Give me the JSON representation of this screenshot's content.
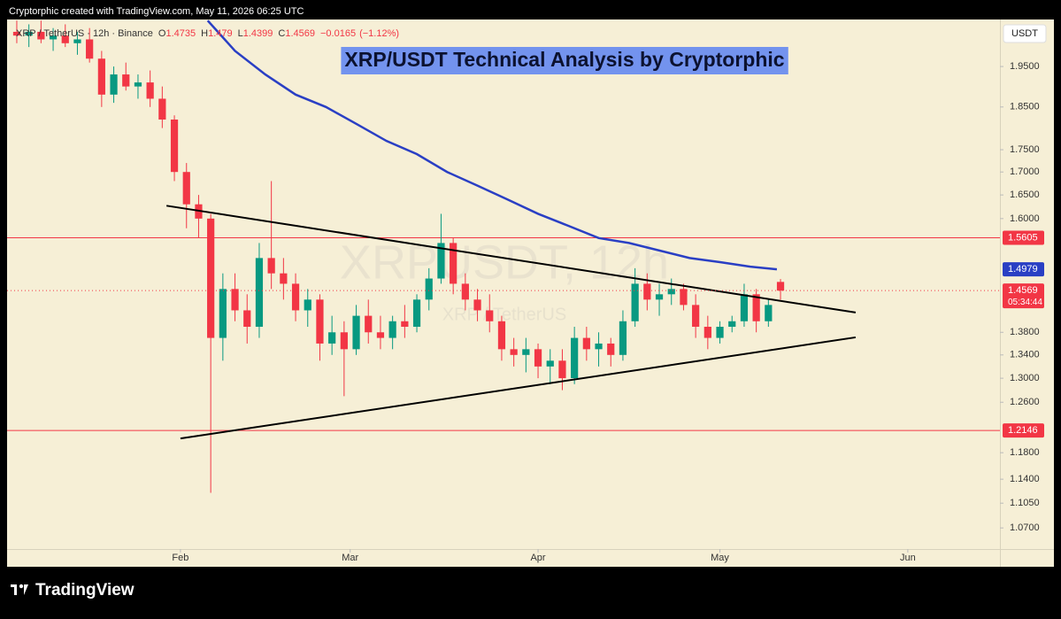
{
  "header": {
    "text": "Cryptorphic created with TradingView.com, May 11, 2026 06:25 UTC"
  },
  "footer": {
    "brand": "TradingView"
  },
  "chart_data": {
    "type": "candlestick",
    "title": "XRP/USDT Technical Analysis by Cryptorphic",
    "symbol_legend": "XRP / TetherUS · 12h · Binance",
    "ohlc_letters": [
      "O",
      "H",
      "L",
      "C"
    ],
    "change": {
      "value": -0.0165,
      "label": "−0.0165"
    },
    "change_pct": {
      "value": -1.12,
      "label": "(−1.12%)"
    },
    "watermark": "XRPUSDT, 12h",
    "watermark_sub": "XRP / TetherUS",
    "currency": "USDT",
    "countdown": "05:34:44",
    "log_scale": true,
    "grid": false,
    "up_color": "#089981",
    "down_color": "#f23645",
    "xlim": [
      2.4,
      166.2
    ],
    "ylim": [
      1.041,
      2.073
    ],
    "xticks": [
      {
        "value": 31,
        "label": "Feb"
      },
      {
        "value": 59,
        "label": "Mar"
      },
      {
        "value": 90,
        "label": "Apr"
      },
      {
        "value": 120,
        "label": "May"
      },
      {
        "value": 151,
        "label": "Jun"
      }
    ],
    "yticks": [
      {
        "value": 1.95,
        "label": "1.9500"
      },
      {
        "value": 1.85,
        "label": "1.8500"
      },
      {
        "value": 1.75,
        "label": "1.7500"
      },
      {
        "value": 1.7,
        "label": "1.7000"
      },
      {
        "value": 1.65,
        "label": "1.6500"
      },
      {
        "value": 1.6,
        "label": "1.6000"
      },
      {
        "value": 1.38,
        "label": "1.3800"
      },
      {
        "value": 1.34,
        "label": "1.3400"
      },
      {
        "value": 1.3,
        "label": "1.3000"
      },
      {
        "value": 1.26,
        "label": "1.2600"
      },
      {
        "value": 1.18,
        "label": "1.1800"
      },
      {
        "value": 1.14,
        "label": "1.1400"
      },
      {
        "value": 1.105,
        "label": "1.1050"
      },
      {
        "value": 1.07,
        "label": "1.0700"
      }
    ],
    "x": [
      4,
      6,
      8,
      10,
      12,
      14,
      16,
      18,
      20,
      22,
      24,
      26,
      28,
      30,
      32,
      34,
      36,
      38,
      40,
      42,
      44,
      46,
      48,
      50,
      52,
      54,
      56,
      58,
      60,
      62,
      64,
      66,
      68,
      70,
      72,
      74,
      76,
      78,
      80,
      82,
      84,
      86,
      88,
      90,
      92,
      94,
      96,
      98,
      100,
      102,
      104,
      106,
      108,
      110,
      112,
      114,
      116,
      118,
      120,
      122,
      124,
      126,
      128,
      130
    ],
    "open": [
      2.04,
      2.03,
      2.04,
      2.02,
      2.03,
      2.01,
      2.02,
      1.97,
      1.88,
      1.93,
      1.9,
      1.91,
      1.87,
      1.82,
      1.7,
      1.63,
      1.6,
      1.37,
      1.46,
      1.42,
      1.39,
      1.52,
      1.49,
      1.47,
      1.42,
      1.44,
      1.36,
      1.38,
      1.35,
      1.41,
      1.38,
      1.37,
      1.4,
      1.39,
      1.44,
      1.48,
      1.55,
      1.47,
      1.44,
      1.42,
      1.4,
      1.35,
      1.34,
      1.35,
      1.32,
      1.33,
      1.3,
      1.37,
      1.35,
      1.36,
      1.34,
      1.4,
      1.47,
      1.44,
      1.45,
      1.46,
      1.43,
      1.39,
      1.37,
      1.39,
      1.4,
      1.45,
      1.4,
      1.4735
    ],
    "high": [
      2.07,
      2.06,
      2.07,
      2.05,
      2.06,
      2.04,
      2.05,
      1.99,
      1.95,
      1.96,
      1.93,
      1.94,
      1.9,
      1.83,
      1.72,
      1.65,
      1.61,
      1.49,
      1.49,
      1.45,
      1.55,
      1.68,
      1.52,
      1.49,
      1.46,
      1.45,
      1.41,
      1.4,
      1.43,
      1.44,
      1.41,
      1.41,
      1.43,
      1.45,
      1.5,
      1.61,
      1.56,
      1.49,
      1.46,
      1.45,
      1.41,
      1.37,
      1.37,
      1.36,
      1.35,
      1.35,
      1.39,
      1.39,
      1.38,
      1.37,
      1.42,
      1.5,
      1.49,
      1.47,
      1.48,
      1.47,
      1.45,
      1.41,
      1.4,
      1.41,
      1.47,
      1.46,
      1.44,
      1.479
    ],
    "low": [
      2.01,
      2.0,
      2.01,
      1.99,
      2.0,
      1.98,
      1.96,
      1.85,
      1.86,
      1.89,
      1.87,
      1.85,
      1.8,
      1.68,
      1.58,
      1.56,
      1.12,
      1.33,
      1.4,
      1.36,
      1.37,
      1.46,
      1.44,
      1.4,
      1.39,
      1.33,
      1.34,
      1.27,
      1.34,
      1.36,
      1.35,
      1.35,
      1.37,
      1.38,
      1.42,
      1.47,
      1.45,
      1.42,
      1.4,
      1.38,
      1.33,
      1.32,
      1.31,
      1.3,
      1.29,
      1.28,
      1.29,
      1.33,
      1.32,
      1.32,
      1.33,
      1.39,
      1.42,
      1.41,
      1.43,
      1.42,
      1.37,
      1.35,
      1.36,
      1.38,
      1.39,
      1.38,
      1.39,
      1.4399
    ],
    "close": [
      2.03,
      2.04,
      2.02,
      2.03,
      2.01,
      2.02,
      1.97,
      1.88,
      1.93,
      1.9,
      1.91,
      1.87,
      1.82,
      1.7,
      1.63,
      1.6,
      1.37,
      1.46,
      1.42,
      1.39,
      1.52,
      1.49,
      1.47,
      1.42,
      1.44,
      1.36,
      1.38,
      1.35,
      1.41,
      1.38,
      1.37,
      1.4,
      1.39,
      1.44,
      1.48,
      1.55,
      1.47,
      1.44,
      1.42,
      1.4,
      1.35,
      1.34,
      1.35,
      1.32,
      1.33,
      1.3,
      1.37,
      1.35,
      1.36,
      1.34,
      1.4,
      1.47,
      1.44,
      1.45,
      1.46,
      1.43,
      1.39,
      1.37,
      1.39,
      1.4,
      1.45,
      1.4,
      1.43,
      1.4569
    ],
    "ma": {
      "color": "#2a3fc4",
      "x": [
        35.5,
        40,
        45,
        50,
        55,
        60,
        65,
        70,
        75,
        80,
        85,
        90,
        95,
        100,
        105,
        110,
        115,
        120,
        125,
        129.4
      ],
      "values": [
        2.07,
        1.99,
        1.93,
        1.88,
        1.85,
        1.81,
        1.77,
        1.74,
        1.7,
        1.67,
        1.64,
        1.61,
        1.585,
        1.56,
        1.55,
        1.535,
        1.52,
        1.512,
        1.503,
        1.4979
      ]
    },
    "trendlines": [
      {
        "color": "#000000",
        "x": [
          28.7,
          142.4
        ],
        "values": [
          1.627,
          1.416
        ]
      },
      {
        "color": "#000000",
        "x": [
          31,
          142.4
        ],
        "values": [
          1.202,
          1.371
        ]
      }
    ],
    "levels": [
      {
        "value": 1.5605,
        "color": "#f23645"
      },
      {
        "value": 1.2146,
        "color": "#f23645"
      }
    ]
  }
}
